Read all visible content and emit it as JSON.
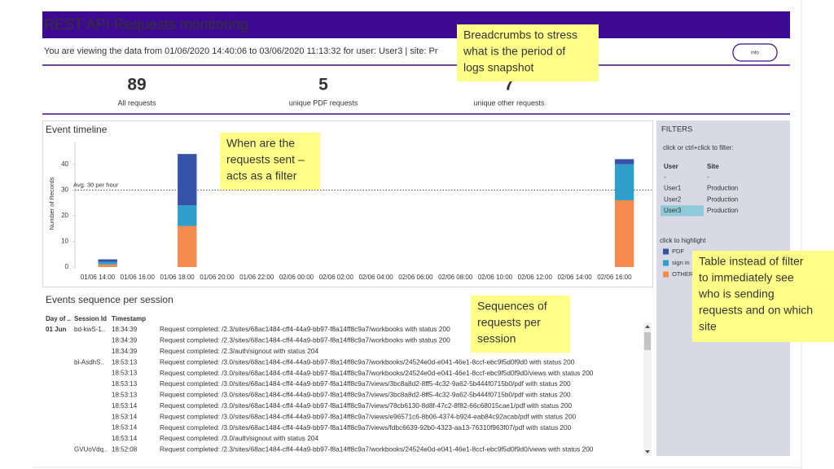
{
  "header": {
    "title_main": "REST API",
    "title_accent": "Requests monitoring",
    "breadcrumb": "You are viewing the data from 01/06/2020 14:40:06 to 03/06/2020 11:13:32 for user: User3 | site: Pr",
    "info_button": "info"
  },
  "kpis": [
    {
      "value": 89,
      "label": "All requests"
    },
    {
      "value": 5,
      "label": "unique PDF requests"
    },
    {
      "value": 7,
      "label": "unique other requests"
    }
  ],
  "chart_data": {
    "type": "stacked_bar",
    "title": "Event timeline",
    "y_label": "Number of Records",
    "categories": [
      "01/06 14:00",
      null,
      "01/06 16:00",
      null,
      "01/06 18:00",
      null,
      "01/06 20:00",
      null,
      "01/06 22:00",
      null,
      "02/06 00:00",
      null,
      "02/06 02:00",
      null,
      "02/06 04:00",
      null,
      "02/06 06:00",
      null,
      "02/06 08:00",
      null,
      "02/06 10:00",
      null,
      "02/06 12:00",
      null,
      "02/06 14:00",
      null,
      "02/06 16:00"
    ],
    "series": [
      {
        "name": "OTHER",
        "color": "#f28b4c",
        "values": [
          1,
          null,
          null,
          null,
          16,
          null,
          null,
          null,
          null,
          null,
          null,
          null,
          null,
          null,
          null,
          null,
          null,
          null,
          null,
          null,
          null,
          null,
          null,
          null,
          null,
          null,
          26
        ]
      },
      {
        "name": "sign in",
        "color": "#2e9fcb",
        "values": [
          1,
          null,
          null,
          null,
          8,
          null,
          null,
          null,
          null,
          null,
          null,
          null,
          null,
          null,
          null,
          null,
          null,
          null,
          null,
          null,
          null,
          null,
          null,
          null,
          null,
          null,
          14
        ]
      },
      {
        "name": "PDF",
        "color": "#3553a8",
        "values": [
          1,
          null,
          null,
          null,
          20,
          null,
          null,
          null,
          null,
          null,
          null,
          null,
          null,
          null,
          null,
          null,
          null,
          null,
          null,
          null,
          null,
          null,
          null,
          null,
          null,
          null,
          2
        ]
      }
    ],
    "ylim": [
      0,
      45
    ],
    "yticks": [
      0,
      10,
      20,
      30,
      40
    ],
    "reference_line": {
      "value": 30,
      "label": "Avg. 30 per hour"
    }
  },
  "sequence": {
    "title": "Events sequence per session",
    "columns": [
      "Day of ..",
      "Session Id",
      "Timestamp"
    ],
    "rows": [
      {
        "day": "01 Jun",
        "session": "bd-kwS-1..",
        "time": "18:34:39",
        "color": "#f28b4c",
        "message": "Request completed: /2.3/sites/68ac1484-cff4-44a9-bb97-f8a14ff8c9a7/workbooks with status 200"
      },
      {
        "day": null,
        "session": null,
        "time": "18:34:39",
        "color": "#f28b4c",
        "message": "Request completed: /2.3/sites/68ac1484-cff4-44a9-bb97-f8a14ff8c9a7/workbooks with status 200"
      },
      {
        "day": null,
        "session": null,
        "time": "18:34:39",
        "color": "#2e9fcb",
        "message": "Request completed: /2.3/auth/signout with status 204"
      },
      {
        "day": null,
        "session": "bl-AsdhS..",
        "time": "18:53:13",
        "color": "#f28b4c",
        "message": "Request completed: /3.0/sites/68ac1484-cff4-44a9-bb97-f8a14ff8c9a7/workbooks/24524e0d-e041-46e1-8ccf-ebc9f5d0f9d0 with status 200"
      },
      {
        "day": null,
        "session": null,
        "time": "18:53:13",
        "color": "#f28b4c",
        "message": "Request completed: /3.0/sites/68ac1484-cff4-44a9-bb97-f8a14ff8c9a7/workbooks/24524e0d-e041-46e1-8ccf-ebc9f5d0f9d0/views with status 200"
      },
      {
        "day": null,
        "session": null,
        "time": "18:53:13",
        "color": "#3553a8",
        "message": "Request completed: /3.0/sites/68ac1484-cff4-44a9-bb97-f8a14ff8c9a7/views/3bc8a8d2-8ff5-4c32-9a62-5b444f0715b0/pdf with status 200"
      },
      {
        "day": null,
        "session": null,
        "time": "18:53:13",
        "color": "#3553a8",
        "message": "Request completed: /3.0/sites/68ac1484-cff4-44a9-bb97-f8a14ff8c9a7/views/3bc8a8d2-8ff5-4c32-9a62-5b444f0715b0/pdf with status 200"
      },
      {
        "day": null,
        "session": null,
        "time": "18:53:14",
        "color": "#3553a8",
        "message": "Request completed: /3.0/sites/68ac1484-cff4-44a9-bb97-f8a14ff8c9a7/views/78cb6130-8d8f-47c2-8f82-66c68015cae1/pdf with status 200"
      },
      {
        "day": null,
        "session": null,
        "time": "18:53:14",
        "color": "#3553a8",
        "message": "Request completed: /3.0/sites/68ac1484-cff4-44a9-bb97-f8a14ff8c9a7/views/e96571c6-8b06-4374-b924-eab84c92acab/pdf with status 200"
      },
      {
        "day": null,
        "session": null,
        "time": "18:53:14",
        "color": "#3553a8",
        "message": "Request completed: /3.0/sites/68ac1484-cff4-44a9-bb97-f8a14ff8c9a7/views/fdbc6639-92b0-4323-aa13-76310f963f07/pdf with status 200"
      },
      {
        "day": null,
        "session": null,
        "time": "18:53:14",
        "color": "#2e9fcb",
        "message": "Request completed: /3.0/auth/signout with status 204"
      },
      {
        "day": null,
        "session": "GVUoVdq..",
        "time": "18:52:08",
        "color": "#f28b4c",
        "message": "Request completed: /2.3/sites/68ac1484-cff4-44a9-bb97-f8a14ff8c9a7/workbooks/24524e0d-e041-46e1-8ccf-ebc9f5d0f9d0/views with status 200"
      }
    ]
  },
  "filters": {
    "title": "FILTERS",
    "hint": "click or ctrl+click to filter:",
    "columns": [
      "User",
      "Site"
    ],
    "rows": [
      {
        "user": "-",
        "site": "-"
      },
      {
        "user": "User1",
        "site": "Production"
      },
      {
        "user": "User2",
        "site": "Production"
      },
      {
        "user": "User3",
        "site": "Production",
        "selected": true
      }
    ],
    "highlight_hint": "click to highlight"
  },
  "annotations": [
    {
      "lines": [
        "Breadcrumbs  to stress",
        "what is the period of",
        "logs snapshot"
      ]
    },
    {
      "lines": [
        "When are the",
        "requests sent –",
        "acts as a filter"
      ]
    },
    {
      "lines": [
        "Sequences of",
        "requests per",
        "session"
      ]
    },
    {
      "lines": [
        "Table instead of filter",
        "to immediately see",
        "who is sending",
        "requests and on which",
        "site"
      ]
    }
  ]
}
